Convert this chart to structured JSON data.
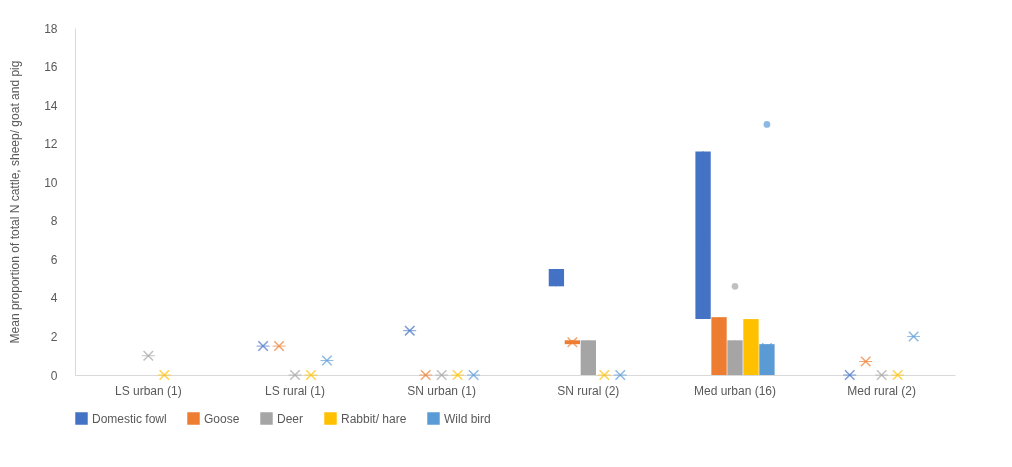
{
  "chart_data": {
    "type": "box",
    "ylabel": "Mean proportion of total N cattle, sheep/ goat and pig",
    "categories": [
      "LS urban (1)",
      "LS rural (1)",
      "SN urban (1)",
      "SN rural (2)",
      "Med urban (16)",
      "Med rural (2)"
    ],
    "ylim": [
      0,
      18
    ],
    "yticks": [
      0,
      2,
      4,
      6,
      8,
      10,
      12,
      14,
      16,
      18
    ],
    "grid": false,
    "legend": "bottom",
    "marker": "cross",
    "series": [
      {
        "name": "Domestic fowl",
        "color": "#4472c4",
        "boxes": [
          null,
          {
            "low": 1.5,
            "q1": 1.5,
            "median": 1.5,
            "q3": 1.5,
            "high": 1.5,
            "mean": 1.5
          },
          {
            "low": 2.3,
            "q1": 2.3,
            "median": 2.3,
            "q3": 2.3,
            "high": 2.3,
            "mean": 2.3
          },
          {
            "low": 4.6,
            "q1": 4.6,
            "median": 5.0,
            "q3": 5.5,
            "high": 5.5,
            "mean": 5.0
          },
          {
            "low": 2.9,
            "q1": 2.9,
            "median": 6.4,
            "q3": 11.6,
            "high": 11.6,
            "mean": 7.0
          },
          {
            "low": 0,
            "q1": 0,
            "median": 0,
            "q3": 0,
            "high": 0,
            "mean": 0
          }
        ]
      },
      {
        "name": "Goose",
        "color": "#ed7d31",
        "boxes": [
          null,
          {
            "low": 1.5,
            "q1": 1.5,
            "median": 1.5,
            "q3": 1.5,
            "high": 1.5,
            "mean": 1.5
          },
          {
            "low": 0,
            "q1": 0,
            "median": 0,
            "q3": 0,
            "high": 0,
            "mean": 0
          },
          {
            "low": 1.6,
            "q1": 1.6,
            "median": 1.7,
            "q3": 1.8,
            "high": 1.8,
            "mean": 1.7
          },
          {
            "low": 0,
            "q1": 0,
            "median": 0.9,
            "q3": 3.0,
            "high": 3.0,
            "mean": 1.4
          },
          {
            "low": 0.7,
            "q1": 0.7,
            "median": 0.7,
            "q3": 0.7,
            "high": 0.7,
            "mean": 0.7
          }
        ]
      },
      {
        "name": "Deer",
        "color": "#a5a5a5",
        "boxes": [
          {
            "low": 1.0,
            "q1": 1.0,
            "median": 1.0,
            "q3": 1.0,
            "high": 1.0,
            "mean": 1.0
          },
          {
            "low": 0,
            "q1": 0,
            "median": 0,
            "q3": 0,
            "high": 0,
            "mean": 0
          },
          {
            "low": 0,
            "q1": 0,
            "median": 0,
            "q3": 0,
            "high": 0,
            "mean": 0
          },
          {
            "low": 0,
            "q1": 0,
            "median": 0.9,
            "q3": 1.8,
            "high": 1.8,
            "mean": 0.9
          },
          {
            "low": 0,
            "q1": 0,
            "median": 0.9,
            "q3": 1.8,
            "high": 1.8,
            "mean": 1.0,
            "outliers": [
              4.6
            ]
          },
          {
            "low": 0,
            "q1": 0,
            "median": 0,
            "q3": 0,
            "high": 0,
            "mean": 0
          }
        ]
      },
      {
        "name": "Rabbit/ hare",
        "color": "#ffc000",
        "boxes": [
          {
            "low": 0,
            "q1": 0,
            "median": 0,
            "q3": 0,
            "high": 0,
            "mean": 0
          },
          {
            "low": 0,
            "q1": 0,
            "median": 0,
            "q3": 0,
            "high": 0,
            "mean": 0
          },
          {
            "low": 0,
            "q1": 0,
            "median": 0,
            "q3": 0,
            "high": 0,
            "mean": 0
          },
          {
            "low": 0,
            "q1": 0,
            "median": 0,
            "q3": 0,
            "high": 0,
            "mean": 0
          },
          {
            "low": 0,
            "q1": 0,
            "median": 1.3,
            "q3": 2.9,
            "high": 2.9,
            "mean": 1.5
          },
          {
            "low": 0,
            "q1": 0,
            "median": 0,
            "q3": 0,
            "high": 0,
            "mean": 0
          }
        ]
      },
      {
        "name": "Wild bird",
        "color": "#5b9bd5",
        "boxes": [
          null,
          {
            "low": 0.75,
            "q1": 0.75,
            "median": 0.75,
            "q3": 0.75,
            "high": 0.75,
            "mean": 0.75
          },
          {
            "low": 0,
            "q1": 0,
            "median": 0,
            "q3": 0,
            "high": 0,
            "mean": 0
          },
          {
            "low": 0,
            "q1": 0,
            "median": 0,
            "q3": 0,
            "high": 0,
            "mean": 0
          },
          {
            "low": 0,
            "q1": 0,
            "median": 1.3,
            "q3": 1.6,
            "high": 1.6,
            "mean": 1.4,
            "outliers": [
              13.0
            ]
          },
          {
            "low": 2.0,
            "q1": 2.0,
            "median": 2.0,
            "q3": 2.0,
            "high": 2.0,
            "mean": 2.0
          }
        ]
      }
    ]
  }
}
